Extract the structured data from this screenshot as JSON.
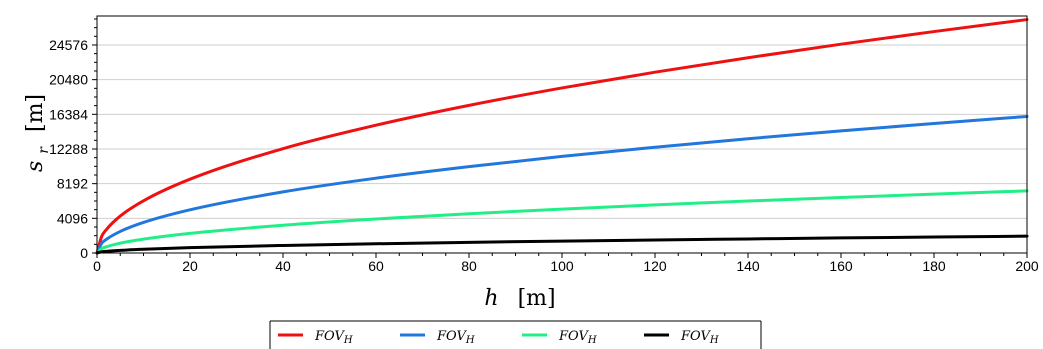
{
  "chart_data": {
    "type": "line",
    "xlabel": {
      "symbol": "h",
      "unit": "[m]"
    },
    "ylabel": {
      "symbol": "s",
      "subscript": "r",
      "unit": "[m]"
    },
    "xlim": [
      0,
      200
    ],
    "ylim": [
      0,
      28000
    ],
    "xticks": [
      0,
      20,
      40,
      60,
      80,
      100,
      120,
      140,
      160,
      180,
      200
    ],
    "xtick_labels": [
      "0",
      "20",
      "40",
      "60",
      "80",
      "100",
      "120",
      "140",
      "160",
      "180",
      "200"
    ],
    "yticks": [
      0,
      4096,
      8192,
      12288,
      16384,
      20480,
      24576
    ],
    "ytick_labels": [
      "0",
      "4096",
      "8192",
      "12288",
      "16384",
      "20480",
      "24576"
    ],
    "grid": {
      "horizontal": true,
      "vertical": false
    },
    "legend_position": "bottom-center",
    "series": [
      {
        "name": "FOV_H",
        "color": "#ee1111",
        "x": [
          0,
          1,
          2,
          5,
          10,
          20,
          40,
          60,
          80,
          100,
          120,
          140,
          160,
          180,
          200
        ],
        "y": [
          0,
          1950,
          2760,
          4360,
          6170,
          8720,
          12330,
          15100,
          17440,
          19500,
          21360,
          23070,
          24670,
          26160,
          27580
        ]
      },
      {
        "name": "FOV_H",
        "color": "#2277dd",
        "x": [
          0,
          1,
          2,
          5,
          10,
          20,
          40,
          60,
          80,
          100,
          120,
          140,
          160,
          180,
          200
        ],
        "y": [
          0,
          1140,
          1610,
          2550,
          3610,
          5100,
          7220,
          8840,
          10200,
          11410,
          12500,
          13500,
          14430,
          15300,
          16130
        ]
      },
      {
        "name": "FOV_H",
        "color": "#22ee88",
        "x": [
          0,
          1,
          2,
          5,
          10,
          20,
          40,
          60,
          80,
          100,
          120,
          140,
          160,
          180,
          200
        ],
        "y": [
          0,
          520,
          730,
          1160,
          1640,
          2320,
          3280,
          4020,
          4640,
          5190,
          5680,
          6140,
          6560,
          6960,
          7340
        ]
      },
      {
        "name": "FOV_H",
        "color": "#000000",
        "x": [
          0,
          1,
          2,
          5,
          10,
          20,
          40,
          60,
          80,
          100,
          120,
          140,
          160,
          180,
          200
        ],
        "y": [
          0,
          140,
          200,
          310,
          440,
          630,
          890,
          1090,
          1260,
          1410,
          1540,
          1660,
          1780,
          1890,
          1990
        ]
      }
    ]
  }
}
